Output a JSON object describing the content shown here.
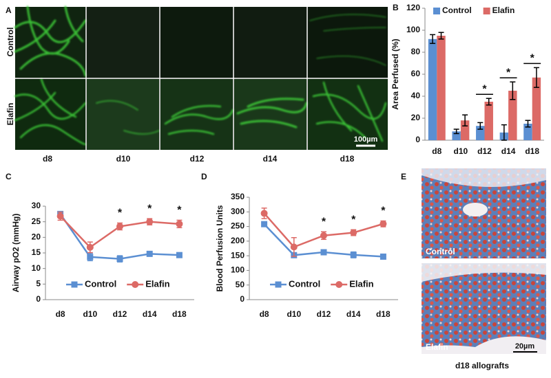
{
  "panel_labels": [
    "A",
    "B",
    "C",
    "D",
    "E"
  ],
  "panel_a": {
    "rows": [
      "Control",
      "Elafin"
    ],
    "columns": [
      "d8",
      "d10",
      "d12",
      "d14",
      "d18"
    ],
    "scale_bar": "100µm"
  },
  "panel_e": {
    "images": [
      "Control",
      "Elafin"
    ],
    "scale_bar": "20µm",
    "caption": "d18 allografts"
  },
  "chart_data": [
    {
      "type": "bar",
      "y_label": "Area Perfused (%)",
      "categories": [
        "d8",
        "d10",
        "d12",
        "d14",
        "d18"
      ],
      "series": [
        {
          "name": "Control",
          "color": "#5b8fd2",
          "values": [
            92,
            8,
            13,
            7,
            15
          ],
          "errors": [
            4,
            2,
            3,
            7,
            3
          ]
        },
        {
          "name": "Elafin",
          "color": "#dc6a66",
          "values": [
            95,
            18,
            35,
            45,
            57
          ],
          "errors": [
            3,
            5,
            3,
            8,
            9
          ]
        }
      ],
      "ylim": [
        0,
        120
      ],
      "yticks": [
        0,
        20,
        40,
        60,
        80,
        100,
        120
      ],
      "legend": "top",
      "significant": [
        false,
        false,
        true,
        true,
        true
      ],
      "significance_marker": "*"
    },
    {
      "type": "line",
      "y_label": "Airway pO2 (mmHg)",
      "categories": [
        "d8",
        "d10",
        "d12",
        "d14",
        "d18"
      ],
      "series": [
        {
          "name": "Control",
          "color": "#5b8fd2",
          "marker": "square",
          "values": [
            27.5,
            13.7,
            13.1,
            14.7,
            14.3
          ],
          "errors": [
            0.5,
            1.2,
            1.0,
            0.3,
            0.4
          ]
        },
        {
          "name": "Elafin",
          "color": "#dc6a66",
          "marker": "circle",
          "values": [
            26.8,
            16.8,
            23.5,
            25.0,
            24.3
          ],
          "errors": [
            1.3,
            1.7,
            1.1,
            1.0,
            1.2
          ]
        }
      ],
      "ylim": [
        0,
        30
      ],
      "yticks": [
        0,
        5,
        10,
        15,
        20,
        25,
        30
      ],
      "legend": "bottom",
      "significant": [
        false,
        false,
        true,
        true,
        true
      ],
      "significance_marker": "*"
    },
    {
      "type": "line",
      "y_label": "Blood Perfusion Units",
      "categories": [
        "d8",
        "d10",
        "d12",
        "d14",
        "d18"
      ],
      "series": [
        {
          "name": "Control",
          "color": "#5b8fd2",
          "marker": "square",
          "values": [
            258,
            152,
            162,
            153,
            147
          ],
          "errors": [
            8,
            4,
            3,
            10,
            6
          ]
        },
        {
          "name": "Elafin",
          "color": "#dc6a66",
          "marker": "circle",
          "values": [
            295,
            180,
            219,
            229,
            259
          ],
          "errors": [
            18,
            32,
            13,
            10,
            10
          ]
        }
      ],
      "ylim": [
        0,
        350
      ],
      "yticks": [
        0,
        50,
        100,
        150,
        200,
        250,
        300,
        350
      ],
      "legend": "bottom",
      "significant": [
        false,
        false,
        true,
        true,
        true
      ],
      "significance_marker": "*"
    }
  ]
}
